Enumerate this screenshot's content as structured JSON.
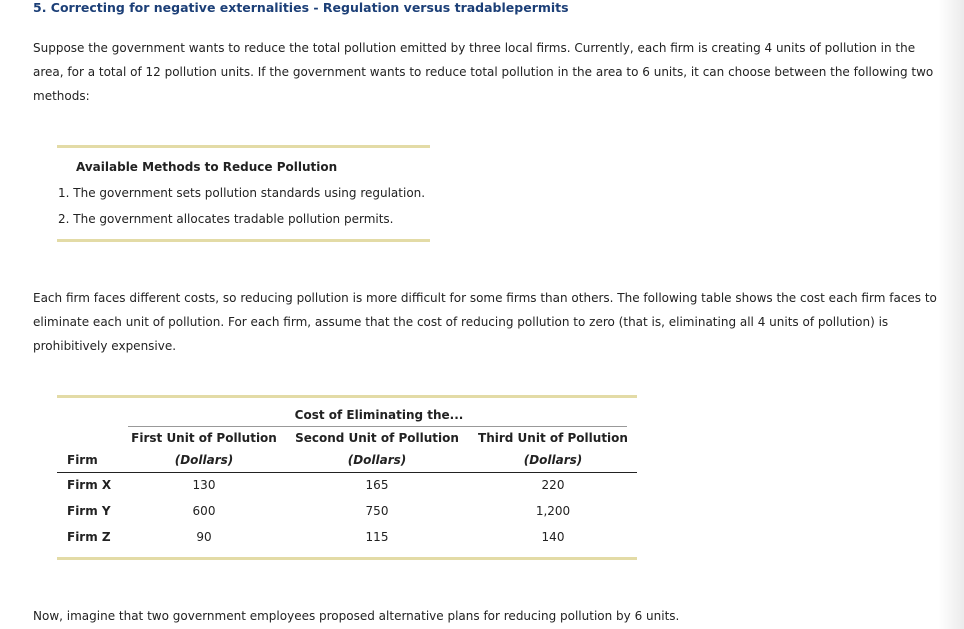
{
  "header": {
    "title": "5. Correcting for negative externalities - Regulation versus tradablepermits"
  },
  "intro": "Suppose the government wants to reduce the total pollution emitted by three local firms. Currently, each firm is creating 4 units of pollution in the area, for a total of 12 pollution units. If the government wants to reduce total pollution in the area to 6 units, it can choose between the following two methods:",
  "methods_box": {
    "title": "Available Methods to Reduce Pollution",
    "items": [
      "1. The government sets pollution standards using regulation.",
      "2. The government allocates tradable pollution permits."
    ]
  },
  "cost_paragraph": "Each firm faces different costs, so reducing pollution is more difficult for some firms than others. The following table shows the cost each firm faces to eliminate each unit of pollution. For each firm, assume that the cost of reducing pollution to zero (that is, eliminating all 4 units of pollution) is prohibitively expensive.",
  "table": {
    "group_header": "Cost of Eliminating the...",
    "columns": [
      {
        "label": "Firm"
      },
      {
        "label": "First Unit of Pollution",
        "unit": "(Dollars)"
      },
      {
        "label": "Second Unit of Pollution",
        "unit": "(Dollars)"
      },
      {
        "label": "Third Unit of Pollution",
        "unit": "(Dollars)"
      }
    ],
    "rows": [
      [
        "Firm X",
        "130",
        "165",
        "220"
      ],
      [
        "Firm Y",
        "600",
        "750",
        "1,200"
      ],
      [
        "Firm Z",
        "90",
        "115",
        "140"
      ]
    ]
  },
  "closing": "Now, imagine that two government employees proposed alternative plans for reducing pollution by 6 units."
}
